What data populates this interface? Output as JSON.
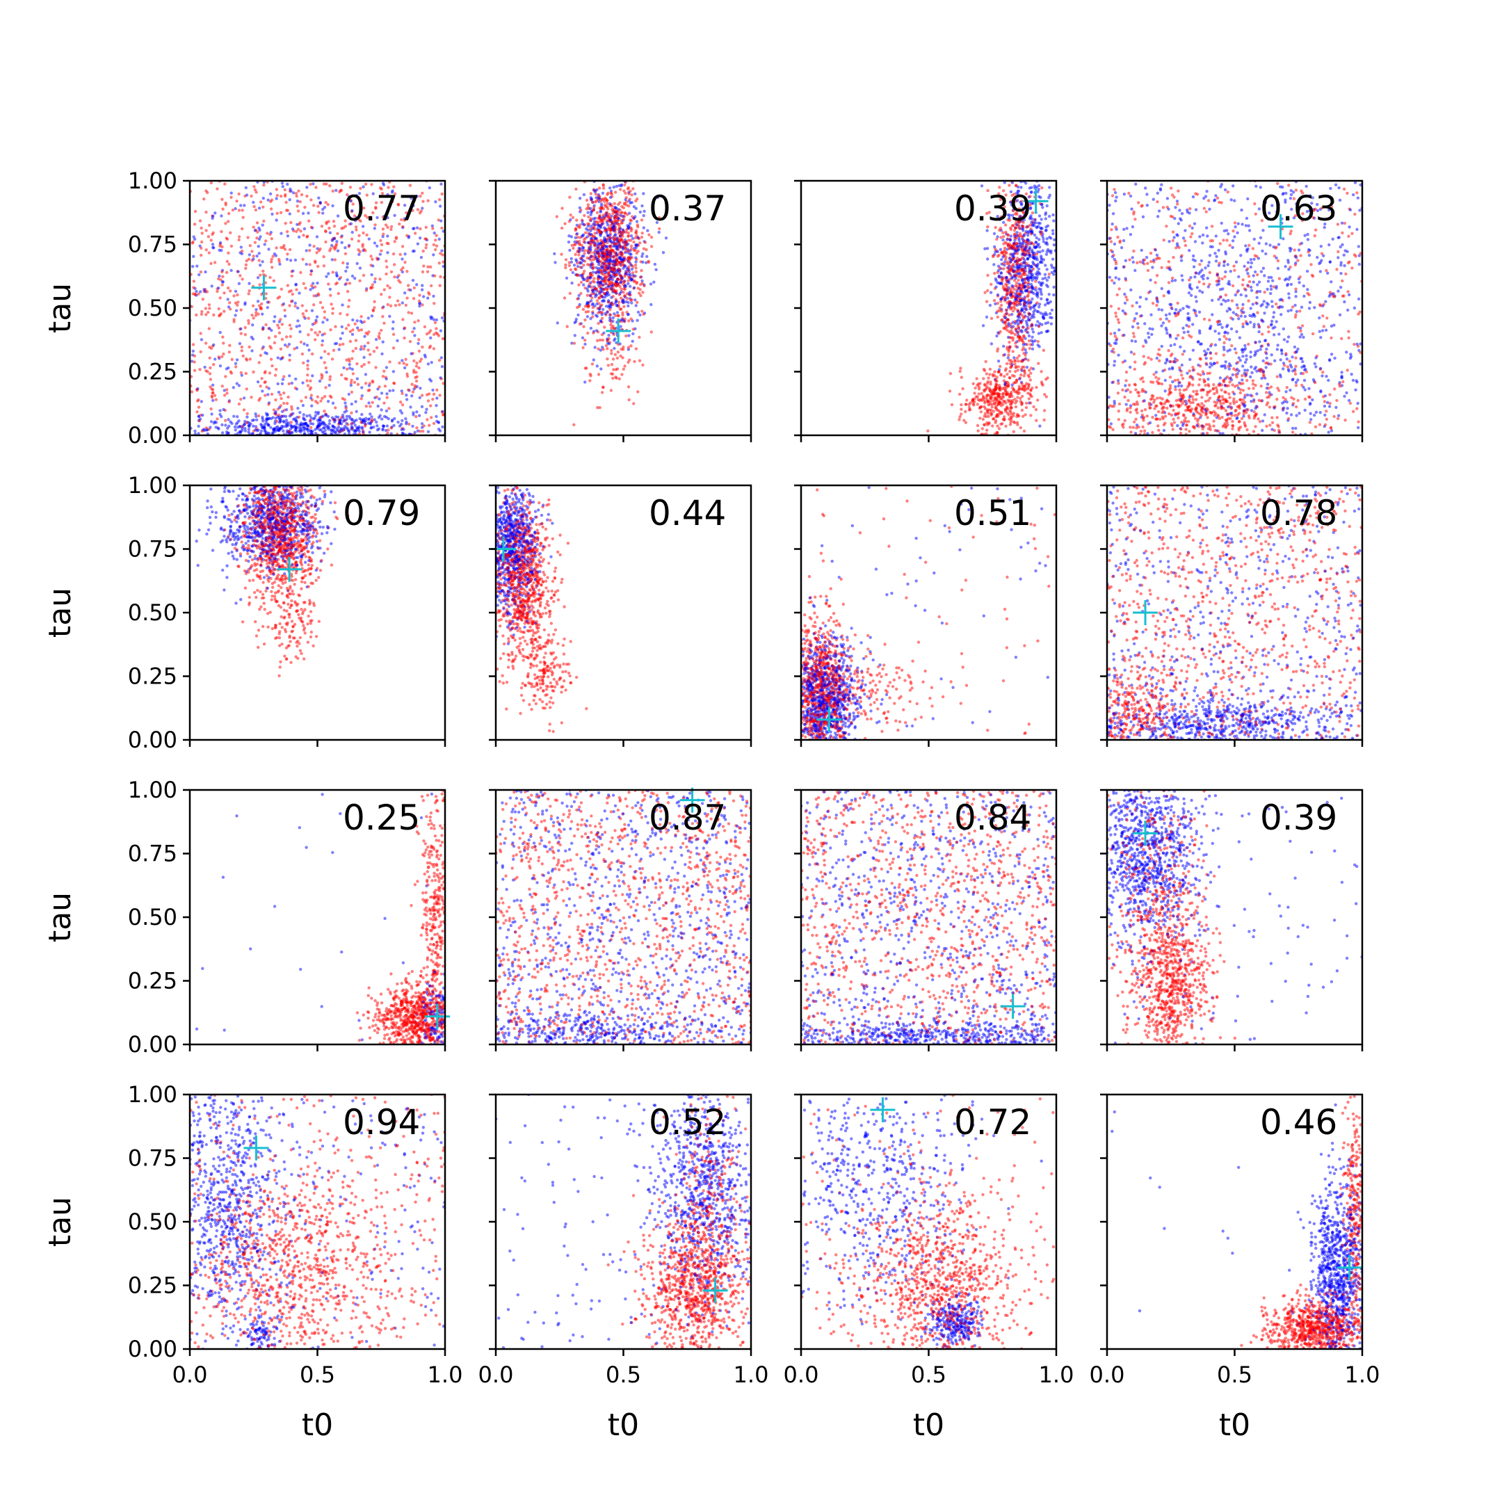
{
  "chart_data": {
    "type": "scatter",
    "layout": "4x4 grid of subplots, shared x and y axes",
    "xlabel": "t0",
    "ylabel": "tau",
    "xlim": [
      0.0,
      1.0
    ],
    "ylim": [
      0.0,
      1.0
    ],
    "xticks": [
      "0.0",
      "0.5",
      "1.0"
    ],
    "yticks": [
      "0.00",
      "0.25",
      "0.50",
      "0.75",
      "1.00"
    ],
    "grid": false,
    "legend": "none",
    "series_colors": {
      "blue": "#0000ff",
      "red": "#ff0000",
      "marker": "#17becf"
    },
    "panels": [
      {
        "annotation": "0.77",
        "marker": [
          0.29,
          0.58
        ],
        "series": [
          {
            "color": "blue",
            "dist": "uniform",
            "n": 500
          },
          {
            "color": "blue",
            "dist": "gauss",
            "center": [
              0.45,
              0.03
            ],
            "spread": [
              0.22,
              0.03
            ],
            "n": 450
          },
          {
            "color": "red",
            "dist": "uniform",
            "n": 900
          }
        ]
      },
      {
        "annotation": "0.37",
        "marker": [
          0.48,
          0.41
        ],
        "series": [
          {
            "color": "blue",
            "dist": "gauss",
            "center": [
              0.44,
              0.68
            ],
            "spread": [
              0.07,
              0.15
            ],
            "n": 650
          },
          {
            "color": "red",
            "dist": "gauss",
            "center": [
              0.44,
              0.72
            ],
            "spread": [
              0.07,
              0.15
            ],
            "n": 800
          },
          {
            "color": "red",
            "dist": "gauss",
            "center": [
              0.46,
              0.3
            ],
            "spread": [
              0.05,
              0.1
            ],
            "n": 60
          }
        ]
      },
      {
        "annotation": "0.39",
        "marker": [
          0.92,
          0.92
        ],
        "series": [
          {
            "color": "blue",
            "dist": "gauss",
            "center": [
              0.88,
              0.65
            ],
            "spread": [
              0.06,
              0.17
            ],
            "n": 650
          },
          {
            "color": "red",
            "dist": "gauss",
            "center": [
              0.84,
              0.6
            ],
            "spread": [
              0.04,
              0.2
            ],
            "n": 500
          },
          {
            "color": "red",
            "dist": "gauss",
            "center": [
              0.78,
              0.15
            ],
            "spread": [
              0.08,
              0.06
            ],
            "n": 400
          }
        ]
      },
      {
        "annotation": "0.63",
        "marker": [
          0.68,
          0.82
        ],
        "series": [
          {
            "color": "blue",
            "dist": "uniform",
            "n": 550
          },
          {
            "color": "blue",
            "dist": "gauss",
            "center": [
              0.55,
              0.45
            ],
            "spread": [
              0.2,
              0.22
            ],
            "n": 350
          },
          {
            "color": "red",
            "dist": "uniform",
            "n": 450
          },
          {
            "color": "red",
            "dist": "gauss",
            "center": [
              0.35,
              0.12
            ],
            "spread": [
              0.18,
              0.08
            ],
            "n": 450
          }
        ]
      },
      {
        "annotation": "0.79",
        "marker": [
          0.39,
          0.67
        ],
        "series": [
          {
            "color": "blue",
            "dist": "gauss",
            "center": [
              0.32,
              0.86
            ],
            "spread": [
              0.1,
              0.1
            ],
            "n": 700
          },
          {
            "color": "red",
            "dist": "gauss",
            "center": [
              0.35,
              0.82
            ],
            "spread": [
              0.07,
              0.13
            ],
            "n": 850
          },
          {
            "color": "red",
            "dist": "gauss",
            "center": [
              0.39,
              0.45
            ],
            "spread": [
              0.05,
              0.08
            ],
            "n": 120
          }
        ]
      },
      {
        "annotation": "0.44",
        "marker": [
          0.03,
          0.75
        ],
        "series": [
          {
            "color": "blue",
            "dist": "gauss",
            "center": [
              0.06,
              0.75
            ],
            "spread": [
              0.05,
              0.13
            ],
            "n": 650
          },
          {
            "color": "red",
            "dist": "gauss",
            "center": [
              0.1,
              0.62
            ],
            "spread": [
              0.06,
              0.17
            ],
            "n": 800
          },
          {
            "color": "red",
            "dist": "gauss",
            "center": [
              0.2,
              0.25
            ],
            "spread": [
              0.05,
              0.08
            ],
            "n": 150
          }
        ]
      },
      {
        "annotation": "0.51",
        "marker": [
          0.11,
          0.08
        ],
        "series": [
          {
            "color": "blue",
            "dist": "gauss",
            "center": [
              0.09,
              0.15
            ],
            "spread": [
              0.07,
              0.12
            ],
            "n": 700
          },
          {
            "color": "blue",
            "dist": "uniform",
            "n": 60
          },
          {
            "color": "red",
            "dist": "gauss",
            "center": [
              0.07,
              0.2
            ],
            "spread": [
              0.06,
              0.15
            ],
            "n": 650
          },
          {
            "color": "red",
            "dist": "gauss",
            "center": [
              0.25,
              0.2
            ],
            "spread": [
              0.12,
              0.08
            ],
            "n": 150
          },
          {
            "color": "red",
            "dist": "uniform",
            "n": 60
          }
        ]
      },
      {
        "annotation": "0.78",
        "marker": [
          0.15,
          0.5
        ],
        "series": [
          {
            "color": "blue",
            "dist": "uniform",
            "n": 500
          },
          {
            "color": "blue",
            "dist": "gauss",
            "center": [
              0.45,
              0.06
            ],
            "spread": [
              0.25,
              0.05
            ],
            "n": 500
          },
          {
            "color": "red",
            "dist": "uniform",
            "n": 800
          },
          {
            "color": "red",
            "dist": "gauss",
            "center": [
              0.12,
              0.1
            ],
            "spread": [
              0.08,
              0.1
            ],
            "n": 200
          }
        ]
      },
      {
        "annotation": "0.25",
        "marker": [
          0.97,
          0.11
        ],
        "series": [
          {
            "color": "blue",
            "dist": "uniform",
            "n": 22
          },
          {
            "color": "blue",
            "dist": "gauss",
            "center": [
              0.96,
              0.1
            ],
            "spread": [
              0.03,
              0.08
            ],
            "n": 120
          },
          {
            "color": "red",
            "dist": "gauss",
            "center": [
              0.88,
              0.1
            ],
            "spread": [
              0.08,
              0.07
            ],
            "n": 650
          },
          {
            "color": "red",
            "dist": "gauss",
            "center": [
              0.96,
              0.55
            ],
            "spread": [
              0.03,
              0.25
            ],
            "n": 300
          }
        ]
      },
      {
        "annotation": "0.87",
        "marker": [
          0.77,
          0.96
        ],
        "series": [
          {
            "color": "blue",
            "dist": "uniform",
            "n": 750
          },
          {
            "color": "blue",
            "dist": "gauss",
            "center": [
              0.35,
              0.05
            ],
            "spread": [
              0.25,
              0.04
            ],
            "n": 300
          },
          {
            "color": "red",
            "dist": "uniform",
            "n": 1000
          }
        ]
      },
      {
        "annotation": "0.84",
        "marker": [
          0.83,
          0.15
        ],
        "series": [
          {
            "color": "blue",
            "dist": "uniform",
            "n": 700
          },
          {
            "color": "blue",
            "dist": "gauss",
            "center": [
              0.5,
              0.03
            ],
            "spread": [
              0.3,
              0.03
            ],
            "n": 400
          },
          {
            "color": "red",
            "dist": "uniform",
            "n": 950
          }
        ]
      },
      {
        "annotation": "0.39",
        "marker": [
          0.15,
          0.83
        ],
        "series": [
          {
            "color": "blue",
            "dist": "gauss",
            "center": [
              0.15,
              0.75
            ],
            "spread": [
              0.1,
              0.17
            ],
            "n": 800
          },
          {
            "color": "blue",
            "dist": "uniform",
            "n": 100
          },
          {
            "color": "red",
            "dist": "gauss",
            "center": [
              0.25,
              0.25
            ],
            "spread": [
              0.08,
              0.15
            ],
            "n": 700
          },
          {
            "color": "red",
            "dist": "gauss",
            "center": [
              0.2,
              0.65
            ],
            "spread": [
              0.1,
              0.2
            ],
            "n": 250
          }
        ]
      },
      {
        "annotation": "0.94",
        "marker": [
          0.26,
          0.79
        ],
        "series": [
          {
            "color": "blue",
            "dist": "gauss",
            "center": [
              0.15,
              0.6
            ],
            "spread": [
              0.12,
              0.25
            ],
            "n": 600
          },
          {
            "color": "blue",
            "dist": "gauss",
            "center": [
              0.27,
              0.06
            ],
            "spread": [
              0.03,
              0.04
            ],
            "n": 80
          },
          {
            "color": "blue",
            "dist": "uniform",
            "n": 200
          },
          {
            "color": "red",
            "dist": "gauss",
            "center": [
              0.38,
              0.3
            ],
            "spread": [
              0.18,
              0.2
            ],
            "n": 700
          },
          {
            "color": "red",
            "dist": "uniform",
            "n": 300
          }
        ]
      },
      {
        "annotation": "0.52",
        "marker": [
          0.86,
          0.23
        ],
        "series": [
          {
            "color": "blue",
            "dist": "gauss",
            "center": [
              0.82,
              0.62
            ],
            "spread": [
              0.1,
              0.22
            ],
            "n": 700
          },
          {
            "color": "blue",
            "dist": "uniform",
            "n": 120
          },
          {
            "color": "red",
            "dist": "gauss",
            "center": [
              0.78,
              0.25
            ],
            "spread": [
              0.1,
              0.14
            ],
            "n": 800
          },
          {
            "color": "red",
            "dist": "gauss",
            "center": [
              0.85,
              0.6
            ],
            "spread": [
              0.07,
              0.2
            ],
            "n": 200
          }
        ]
      },
      {
        "annotation": "0.72",
        "marker": [
          0.32,
          0.94
        ],
        "series": [
          {
            "color": "blue",
            "dist": "gauss",
            "center": [
              0.3,
              0.65
            ],
            "spread": [
              0.2,
              0.25
            ],
            "n": 500
          },
          {
            "color": "blue",
            "dist": "gauss",
            "center": [
              0.6,
              0.1
            ],
            "spread": [
              0.05,
              0.05
            ],
            "n": 250
          },
          {
            "color": "red",
            "dist": "gauss",
            "center": [
              0.55,
              0.25
            ],
            "spread": [
              0.15,
              0.18
            ],
            "n": 800
          },
          {
            "color": "red",
            "dist": "uniform",
            "n": 150
          }
        ]
      },
      {
        "annotation": "0.46",
        "marker": [
          0.95,
          0.32
        ],
        "series": [
          {
            "color": "blue",
            "dist": "gauss",
            "center": [
              0.9,
              0.3
            ],
            "spread": [
              0.05,
              0.18
            ],
            "n": 750
          },
          {
            "color": "blue",
            "dist": "uniform",
            "n": 15
          },
          {
            "color": "red",
            "dist": "gauss",
            "center": [
              0.82,
              0.08
            ],
            "spread": [
              0.1,
              0.06
            ],
            "n": 700
          },
          {
            "color": "red",
            "dist": "gauss",
            "center": [
              0.97,
              0.55
            ],
            "spread": [
              0.02,
              0.25
            ],
            "n": 250
          }
        ]
      }
    ]
  }
}
